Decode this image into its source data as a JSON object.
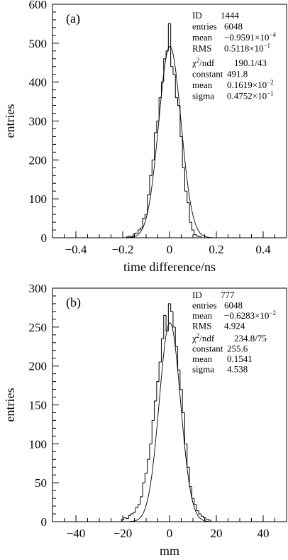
{
  "chart_data": [
    {
      "type": "histogram",
      "panel_label": "(a)",
      "xlabel": "time difference/ns",
      "ylabel": "entries",
      "xlim": [
        -0.5,
        0.5
      ],
      "ylim": [
        0,
        600
      ],
      "xticks": [
        -0.4,
        -0.2,
        0,
        0.2,
        0.4
      ],
      "xtick_labels": [
        "−0.4",
        "−0.2",
        "0",
        "0.2",
        "0.4"
      ],
      "yticks": [
        0,
        100,
        200,
        300,
        400,
        500,
        600
      ],
      "ytick_labels": [
        "0",
        "100",
        "200",
        "300",
        "400",
        "500",
        "600"
      ],
      "stats": [
        {
          "name": "ID",
          "value": "1444"
        },
        {
          "name": "entries",
          "value": "6048"
        },
        {
          "name": "mean",
          "value": "−0.9591×10",
          "exp": "−4"
        },
        {
          "name": "RMS",
          "value": "0.5118×10",
          "exp": "−1"
        },
        {
          "name": "χ²/ndf",
          "value": "190.1/43"
        },
        {
          "name": "constant",
          "value": "491.8"
        },
        {
          "name": "mean",
          "value": "0.1619×10",
          "exp": "−2"
        },
        {
          "name": "sigma",
          "value": "0.4752×10",
          "exp": "−1"
        }
      ],
      "fit": {
        "constant": 491.8,
        "mean": 0.001619,
        "sigma": 0.04752
      },
      "bin_width": 0.01,
      "bins": [
        {
          "x": -0.18,
          "y": 2
        },
        {
          "x": -0.17,
          "y": 4
        },
        {
          "x": -0.16,
          "y": 3
        },
        {
          "x": -0.15,
          "y": 10
        },
        {
          "x": -0.14,
          "y": 12
        },
        {
          "x": -0.13,
          "y": 20
        },
        {
          "x": -0.12,
          "y": 25
        },
        {
          "x": -0.11,
          "y": 50
        },
        {
          "x": -0.1,
          "y": 60
        },
        {
          "x": -0.09,
          "y": 110
        },
        {
          "x": -0.08,
          "y": 160
        },
        {
          "x": -0.07,
          "y": 200
        },
        {
          "x": -0.06,
          "y": 270
        },
        {
          "x": -0.05,
          "y": 300
        },
        {
          "x": -0.04,
          "y": 360
        },
        {
          "x": -0.03,
          "y": 400
        },
        {
          "x": -0.02,
          "y": 460
        },
        {
          "x": -0.01,
          "y": 480
        },
        {
          "x": 0.0,
          "y": 550
        },
        {
          "x": 0.01,
          "y": 440
        },
        {
          "x": 0.02,
          "y": 420
        },
        {
          "x": 0.03,
          "y": 360
        },
        {
          "x": 0.04,
          "y": 340
        },
        {
          "x": 0.05,
          "y": 260
        },
        {
          "x": 0.06,
          "y": 180
        },
        {
          "x": 0.07,
          "y": 120
        },
        {
          "x": 0.08,
          "y": 90
        },
        {
          "x": 0.09,
          "y": 40
        },
        {
          "x": 0.1,
          "y": 20
        },
        {
          "x": 0.11,
          "y": 8
        },
        {
          "x": 0.12,
          "y": 4
        },
        {
          "x": 0.13,
          "y": 3
        }
      ]
    },
    {
      "type": "histogram",
      "panel_label": "(b)",
      "xlabel": "mm",
      "ylabel": "entries",
      "xlim": [
        -50,
        50
      ],
      "ylim": [
        0,
        300
      ],
      "xticks": [
        -40,
        -20,
        0,
        20,
        40
      ],
      "xtick_labels": [
        "−40",
        "−20",
        "0",
        "20",
        "40"
      ],
      "yticks": [
        0,
        50,
        100,
        150,
        200,
        250,
        300
      ],
      "ytick_labels": [
        "0",
        "50",
        "100",
        "150",
        "200",
        "250",
        "300"
      ],
      "stats": [
        {
          "name": "ID",
          "value": "777"
        },
        {
          "name": "entries",
          "value": "6048"
        },
        {
          "name": "mean",
          "value": "−0.6283×10",
          "exp": "−2"
        },
        {
          "name": "RMS",
          "value": "4.924"
        },
        {
          "name": "χ²/ndf",
          "value": "234.8/75"
        },
        {
          "name": "constant",
          "value": "255.6"
        },
        {
          "name": "mean",
          "value": "0.1541"
        },
        {
          "name": "sigma",
          "value": "4.538"
        }
      ],
      "fit": {
        "constant": 255.6,
        "mean": 0.1541,
        "sigma": 4.538
      },
      "bin_width": 1,
      "bins": [
        {
          "x": -20,
          "y": 3
        },
        {
          "x": -19,
          "y": 5
        },
        {
          "x": -18,
          "y": 4
        },
        {
          "x": -17,
          "y": 8
        },
        {
          "x": -16,
          "y": 10
        },
        {
          "x": -15,
          "y": 12
        },
        {
          "x": -14,
          "y": 18
        },
        {
          "x": -13,
          "y": 22
        },
        {
          "x": -12,
          "y": 32
        },
        {
          "x": -11,
          "y": 50
        },
        {
          "x": -10,
          "y": 62
        },
        {
          "x": -9,
          "y": 80
        },
        {
          "x": -8,
          "y": 100
        },
        {
          "x": -7,
          "y": 130
        },
        {
          "x": -6,
          "y": 155
        },
        {
          "x": -5,
          "y": 180
        },
        {
          "x": -4,
          "y": 205
        },
        {
          "x": -3,
          "y": 235
        },
        {
          "x": -2,
          "y": 265
        },
        {
          "x": -1,
          "y": 245
        },
        {
          "x": 0,
          "y": 280
        },
        {
          "x": 1,
          "y": 270
        },
        {
          "x": 2,
          "y": 250
        },
        {
          "x": 3,
          "y": 225
        },
        {
          "x": 4,
          "y": 195
        },
        {
          "x": 5,
          "y": 170
        },
        {
          "x": 6,
          "y": 140
        },
        {
          "x": 7,
          "y": 100
        },
        {
          "x": 8,
          "y": 70
        },
        {
          "x": 9,
          "y": 45
        },
        {
          "x": 10,
          "y": 30
        },
        {
          "x": 11,
          "y": 22
        },
        {
          "x": 12,
          "y": 14
        },
        {
          "x": 13,
          "y": 10
        },
        {
          "x": 14,
          "y": 7
        },
        {
          "x": 15,
          "y": 5
        },
        {
          "x": 16,
          "y": 3
        },
        {
          "x": 17,
          "y": 2
        }
      ]
    }
  ]
}
